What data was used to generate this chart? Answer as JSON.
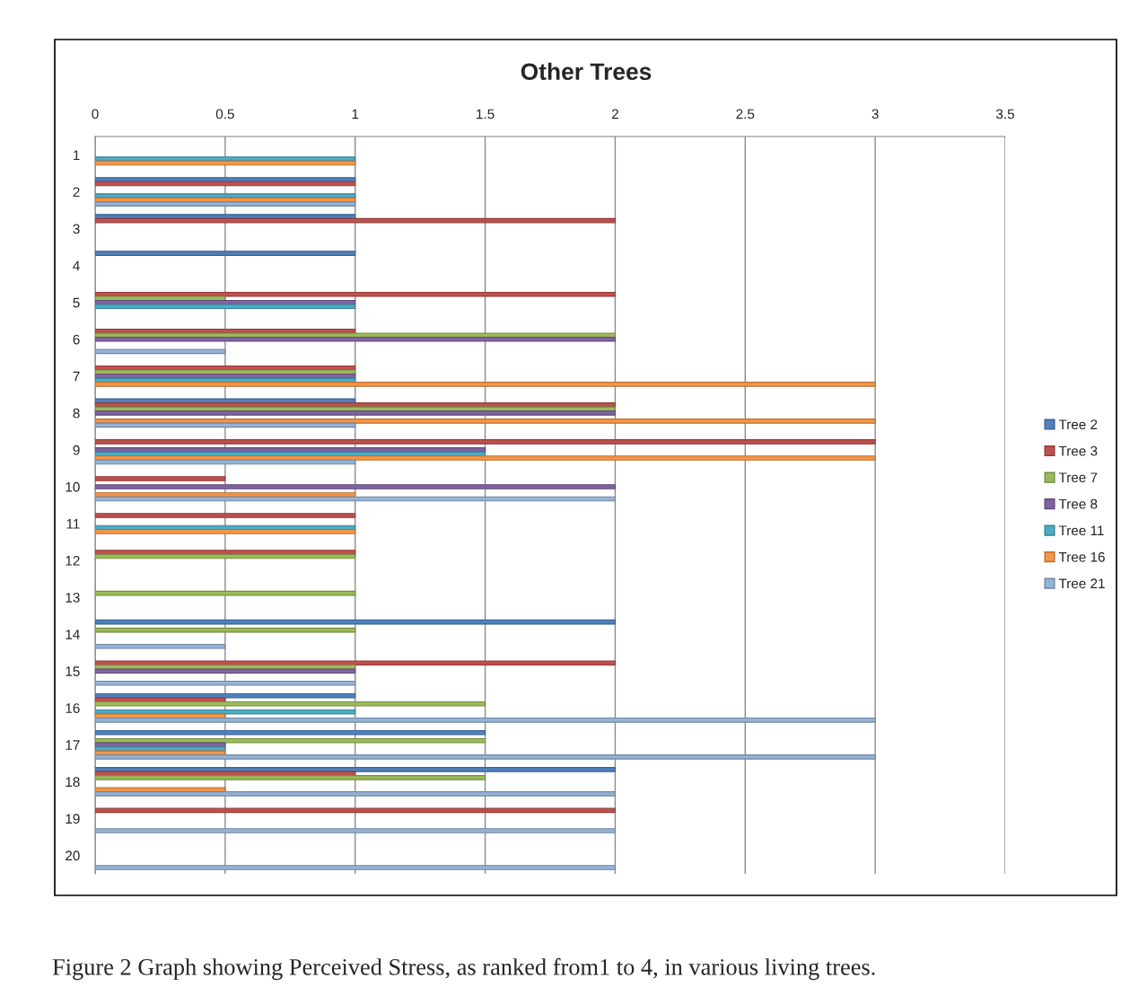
{
  "chart_data": {
    "type": "bar",
    "orientation": "horizontal",
    "title": "Other Trees",
    "categories": [
      "1",
      "2",
      "3",
      "4",
      "5",
      "6",
      "7",
      "8",
      "9",
      "10",
      "11",
      "12",
      "13",
      "14",
      "15",
      "16",
      "17",
      "18",
      "19",
      "20"
    ],
    "series": [
      {
        "name": "Tree 2",
        "color": "#4f81bd",
        "values": [
          null,
          1,
          1,
          1,
          null,
          null,
          null,
          1,
          null,
          null,
          null,
          null,
          null,
          2,
          null,
          1,
          1.5,
          2,
          null,
          null
        ]
      },
      {
        "name": "Tree 3",
        "color": "#c0504d",
        "values": [
          null,
          1,
          2,
          null,
          2,
          1,
          1,
          2,
          3,
          0.5,
          1,
          1,
          null,
          null,
          2,
          0.5,
          null,
          1,
          2,
          null
        ]
      },
      {
        "name": "Tree 7",
        "color": "#9bbb59",
        "values": [
          null,
          null,
          null,
          null,
          0.5,
          2,
          1,
          2,
          null,
          null,
          null,
          1,
          1,
          1,
          1,
          1.5,
          1.5,
          1.5,
          null,
          null
        ]
      },
      {
        "name": "Tree 8",
        "color": "#8064a2",
        "values": [
          null,
          null,
          null,
          null,
          1,
          2,
          1,
          2,
          1.5,
          2,
          null,
          null,
          null,
          null,
          1,
          null,
          0.5,
          null,
          null,
          null
        ]
      },
      {
        "name": "Tree 11",
        "color": "#4bacc6",
        "values": [
          1,
          1,
          null,
          null,
          1,
          null,
          1,
          null,
          1.5,
          null,
          1,
          null,
          null,
          null,
          null,
          1,
          0.5,
          null,
          null,
          null
        ]
      },
      {
        "name": "Tree 16",
        "color": "#f79646",
        "values": [
          1,
          1,
          null,
          null,
          null,
          null,
          3,
          3,
          3,
          1,
          1,
          null,
          null,
          null,
          null,
          0.5,
          0.5,
          0.5,
          null,
          null
        ]
      },
      {
        "name": "Tree 21",
        "color": "#95b3d7",
        "values": [
          null,
          1,
          null,
          null,
          null,
          0.5,
          null,
          1,
          1,
          2,
          null,
          null,
          null,
          0.5,
          1,
          3,
          3,
          2,
          2,
          2
        ]
      }
    ],
    "xlim": [
      0,
      3.5
    ],
    "xticks": [
      0,
      0.5,
      1,
      1.5,
      2,
      2.5,
      3,
      3.5
    ],
    "grid": "x",
    "legend": "right",
    "annotations": [
      "Figure 2 Graph showing Perceived Stress, as ranked from1 to 4, in various living trees."
    ]
  }
}
